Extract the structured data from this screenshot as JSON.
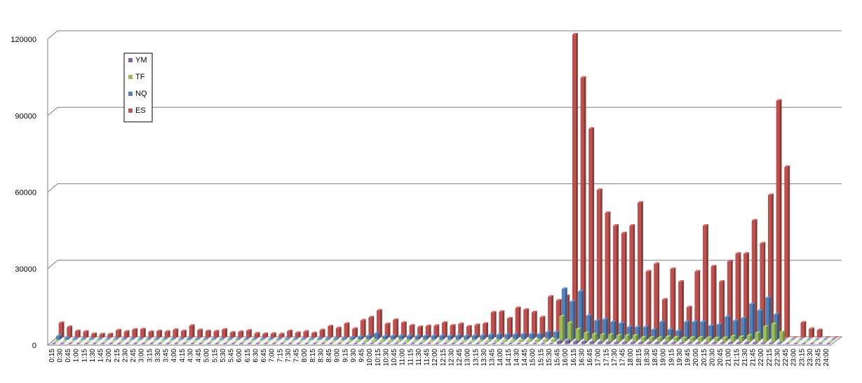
{
  "chart_data": {
    "type": "bar",
    "style": "3d-clustered-column",
    "title": "",
    "xlabel": "",
    "ylabel": "",
    "ylim": [
      0,
      120000
    ],
    "yticks": [
      0,
      30000,
      60000,
      90000,
      120000
    ],
    "grid": true,
    "legend_position": "left-inside",
    "categories": [
      "0:15",
      "0:30",
      "0:45",
      "1:00",
      "1:15",
      "1:30",
      "1:45",
      "2:00",
      "2:15",
      "2:30",
      "2:45",
      "3:00",
      "3:15",
      "3:30",
      "3:45",
      "4:00",
      "4:15",
      "4:30",
      "4:45",
      "5:00",
      "5:15",
      "5:30",
      "5:45",
      "6:00",
      "6:15",
      "6:30",
      "6:45",
      "7:00",
      "7:15",
      "7:30",
      "7:45",
      "8:00",
      "8:15",
      "8:30",
      "8:45",
      "9:00",
      "9:15",
      "9:30",
      "9:45",
      "10:00",
      "10:15",
      "10:30",
      "10:45",
      "11:00",
      "11:15",
      "11:30",
      "11:45",
      "12:00",
      "12:15",
      "12:30",
      "12:45",
      "13:00",
      "13:15",
      "13:30",
      "13:45",
      "14:00",
      "14:15",
      "14:30",
      "14:45",
      "15:00",
      "15:15",
      "15:30",
      "15:45",
      "16:00",
      "16:15",
      "16:30",
      "16:45",
      "17:00",
      "17:15",
      "17:30",
      "17:45",
      "18:00",
      "18:15",
      "18:30",
      "18:45",
      "19:00",
      "19:15",
      "19:30",
      "19:45",
      "20:00",
      "20:15",
      "20:30",
      "20:45",
      "21:00",
      "21:15",
      "21:30",
      "21:45",
      "22:00",
      "22:15",
      "22:30",
      "22:45",
      "23:00",
      "23:15",
      "23:30",
      "23:45",
      "24:00"
    ],
    "series": [
      {
        "name": "YM",
        "color": "#7e62a6",
        "values": [
          0,
          0,
          0,
          0,
          0,
          0,
          0,
          0,
          0,
          0,
          0,
          0,
          0,
          0,
          0,
          0,
          0,
          0,
          0,
          0,
          0,
          0,
          0,
          0,
          0,
          0,
          0,
          0,
          0,
          0,
          0,
          0,
          0,
          0,
          0,
          0,
          0,
          0,
          0,
          0,
          0,
          0,
          0,
          0,
          0,
          0,
          0,
          0,
          0,
          0,
          0,
          0,
          0,
          0,
          0,
          0,
          0,
          0,
          0,
          0,
          0,
          0,
          1000,
          1200,
          900,
          800,
          700,
          600,
          600,
          500,
          500,
          500,
          400,
          400,
          400,
          400,
          300,
          300,
          300,
          300,
          300,
          300,
          300,
          400,
          400,
          400,
          400,
          300,
          300,
          300,
          0,
          0,
          0,
          0,
          0,
          0
        ]
      },
      {
        "name": "TF",
        "color": "#9bbb59",
        "values": [
          200,
          100,
          100,
          100,
          100,
          100,
          100,
          100,
          100,
          100,
          100,
          100,
          100,
          100,
          100,
          100,
          100,
          100,
          100,
          100,
          100,
          100,
          100,
          100,
          100,
          100,
          100,
          100,
          100,
          100,
          100,
          100,
          100,
          200,
          200,
          200,
          300,
          400,
          500,
          600,
          500,
          400,
          400,
          400,
          300,
          300,
          300,
          300,
          300,
          300,
          300,
          300,
          300,
          400,
          500,
          500,
          500,
          600,
          600,
          700,
          800,
          900,
          10000,
          7500,
          5000,
          3500,
          3000,
          2800,
          2800,
          2500,
          2500,
          2500,
          1800,
          1700,
          1600,
          2000,
          1800,
          1500,
          1700,
          1700,
          1600,
          1500,
          1600,
          2200,
          2000,
          2500,
          3500,
          6000,
          7000,
          4000,
          0,
          0,
          0,
          0,
          0,
          0
        ]
      },
      {
        "name": "NQ",
        "color": "#4f81bd",
        "values": [
          1500,
          700,
          400,
          300,
          300,
          200,
          200,
          300,
          300,
          300,
          300,
          300,
          300,
          300,
          300,
          300,
          400,
          300,
          300,
          300,
          300,
          300,
          300,
          300,
          300,
          300,
          300,
          300,
          300,
          300,
          300,
          300,
          400,
          500,
          500,
          600,
          900,
          1200,
          1500,
          2500,
          1400,
          1500,
          1600,
          1500,
          1400,
          1500,
          1500,
          1600,
          1500,
          1600,
          1500,
          1600,
          1700,
          2000,
          2000,
          2000,
          2100,
          2200,
          2300,
          2200,
          3000,
          3000,
          20000,
          15000,
          19000,
          9500,
          7500,
          8000,
          7000,
          6500,
          5000,
          5000,
          5000,
          4000,
          7000,
          4000,
          3500,
          7000,
          7000,
          7000,
          5500,
          6000,
          9000,
          7500,
          8500,
          14000,
          11500,
          16500,
          10000,
          0,
          0,
          0,
          0,
          0,
          0,
          0
        ]
      },
      {
        "name": "ES",
        "color": "#c0504d",
        "values": [
          5800,
          4200,
          2600,
          2400,
          1500,
          1400,
          1400,
          2900,
          2400,
          3200,
          3300,
          2300,
          2600,
          2400,
          3100,
          2600,
          4700,
          3000,
          2600,
          2500,
          3200,
          2000,
          2300,
          2800,
          1700,
          1500,
          1600,
          1400,
          2600,
          1900,
          2400,
          1800,
          3000,
          4500,
          3800,
          5500,
          3500,
          6800,
          8000,
          10700,
          5400,
          7000,
          5900,
          4800,
          4200,
          4600,
          4700,
          5900,
          4800,
          5400,
          4400,
          5000,
          5500,
          9900,
          10200,
          7600,
          11700,
          11000,
          10000,
          8000,
          16100,
          14600,
          16400,
          119000,
          102000,
          82000,
          58000,
          49000,
          44000,
          41000,
          44000,
          53000,
          26000,
          29000,
          15000,
          27000,
          22000,
          12000,
          26000,
          44000,
          28000,
          22000,
          30000,
          33000,
          33000,
          46000,
          37000,
          56000,
          93000,
          67000,
          0,
          6000,
          3500,
          3000,
          0,
          0
        ]
      }
    ]
  }
}
